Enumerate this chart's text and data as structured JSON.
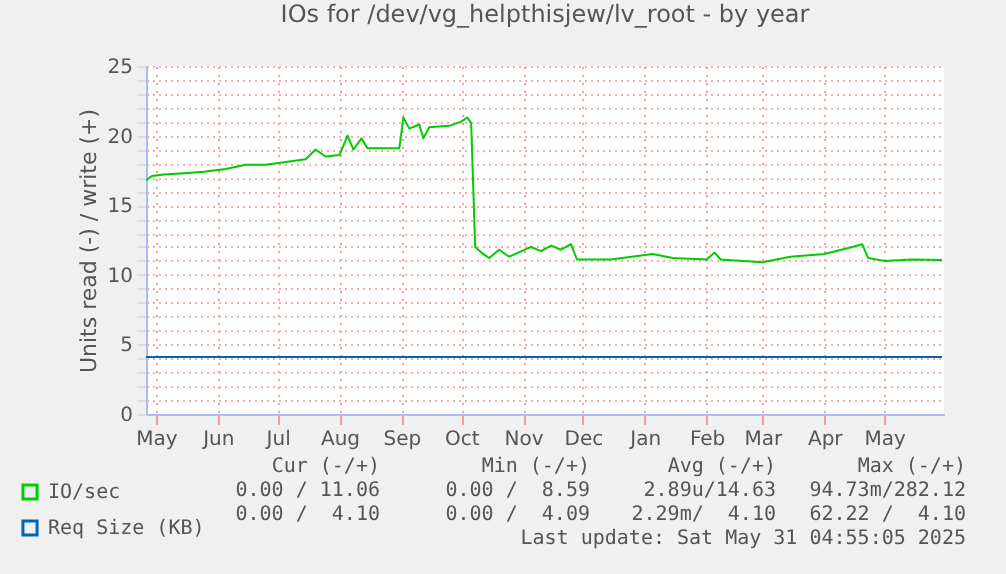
{
  "chart_data": {
    "type": "line",
    "title": "IOs for /dev/vg_helpthisjew/lv_root - by year",
    "ylabel": "Units read (-) / write (+)",
    "xlim": [
      "2024-04-26",
      "2025-05-31"
    ],
    "xticks": [
      {
        "value": "2024-05-01",
        "label": "May"
      },
      {
        "value": "2024-06-01",
        "label": "Jun"
      },
      {
        "value": "2024-07-01",
        "label": "Jul"
      },
      {
        "value": "2024-08-01",
        "label": "Aug"
      },
      {
        "value": "2024-09-01",
        "label": "Sep"
      },
      {
        "value": "2024-10-01",
        "label": "Oct"
      },
      {
        "value": "2024-11-01",
        "label": "Nov"
      },
      {
        "value": "2024-12-01",
        "label": "Dec"
      },
      {
        "value": "2025-01-01",
        "label": "Jan"
      },
      {
        "value": "2025-02-01",
        "label": "Feb"
      },
      {
        "value": "2025-03-01",
        "label": "Mar"
      },
      {
        "value": "2025-04-01",
        "label": "Apr"
      },
      {
        "value": "2025-05-01",
        "label": "May"
      }
    ],
    "ylim": [
      0,
      25
    ],
    "yticks": [
      0,
      {
        "value": 1,
        "label": null
      },
      {
        "value": 2,
        "label": null
      },
      {
        "value": 3,
        "label": null
      },
      {
        "value": 4,
        "label": null
      },
      5,
      {
        "value": 6,
        "label": null
      },
      {
        "value": 7,
        "label": null
      },
      {
        "value": 8,
        "label": null
      },
      {
        "value": 9,
        "label": null
      },
      10,
      {
        "value": 11,
        "label": null
      },
      {
        "value": 12,
        "label": null
      },
      {
        "value": 13,
        "label": null
      },
      {
        "value": 14,
        "label": null
      },
      15,
      {
        "value": 16,
        "label": null
      },
      {
        "value": 17,
        "label": null
      },
      {
        "value": 18,
        "label": null
      },
      {
        "value": 19,
        "label": null
      },
      20,
      {
        "value": 21,
        "label": null
      },
      {
        "value": 22,
        "label": null
      },
      {
        "value": 23,
        "label": null
      },
      {
        "value": 24,
        "label": null
      },
      25
    ],
    "grid": true,
    "legend": "bottom left",
    "line_style": "solid",
    "series": [
      {
        "name": "IO/sec",
        "color": "#00cc00",
        "x": [
          "2024-04-26",
          "2024-04-29",
          "2024-05-05",
          "2024-05-15",
          "2024-05-25",
          "2024-06-05",
          "2024-06-15",
          "2024-06-25",
          "2024-07-05",
          "2024-07-15",
          "2024-07-20",
          "2024-07-25",
          "2024-08-01",
          "2024-08-05",
          "2024-08-08",
          "2024-08-12",
          "2024-08-15",
          "2024-08-31",
          "2024-09-02",
          "2024-09-05",
          "2024-09-10",
          "2024-09-12",
          "2024-09-15",
          "2024-09-25",
          "2024-10-01",
          "2024-10-04",
          "2024-10-06",
          "2024-10-08",
          "2024-10-12",
          "2024-10-15",
          "2024-10-20",
          "2024-10-25",
          "2024-11-05",
          "2024-11-10",
          "2024-11-15",
          "2024-11-20",
          "2024-11-25",
          "2024-11-28",
          "2024-12-15",
          "2025-01-05",
          "2025-01-15",
          "2025-02-01",
          "2025-02-05",
          "2025-02-08",
          "2025-03-01",
          "2025-03-15",
          "2025-04-01",
          "2025-04-15",
          "2025-04-20",
          "2025-04-23",
          "2025-05-01",
          "2025-05-15",
          "2025-05-30"
        ],
        "values": [
          16.8,
          17.1,
          17.2,
          17.3,
          17.4,
          17.6,
          17.9,
          17.9,
          18.1,
          18.3,
          19.0,
          18.5,
          18.6,
          20.0,
          19.0,
          19.8,
          19.1,
          19.1,
          21.3,
          20.5,
          20.8,
          19.8,
          20.6,
          20.7,
          21.0,
          21.3,
          20.9,
          12.0,
          11.5,
          11.2,
          11.8,
          11.3,
          12.0,
          11.7,
          12.1,
          11.8,
          12.2,
          11.1,
          11.1,
          11.5,
          11.2,
          11.1,
          11.6,
          11.1,
          10.9,
          11.3,
          11.5,
          12.0,
          12.2,
          11.2,
          11.0,
          11.1,
          11.06
        ]
      },
      {
        "name": "Req Size (KB)",
        "color": "#0066b3",
        "x": [
          "2024-04-26",
          "2025-05-30"
        ],
        "values": [
          4.1,
          4.1
        ]
      }
    ],
    "annotations": [
      "Cur (-/+)",
      "Min (-/+)",
      "Avg (-/+)",
      "Max (-/+)",
      "0.00 / 11.06",
      "0.00 /  8.59",
      "2.89u/14.63",
      "94.73m/282.12",
      "0.00 /  4.10",
      "0.00 /  4.09",
      "2.29m/  4.10",
      "62.22 /  4.10",
      "Last update: Sat May 31 04:55:05 2025"
    ]
  }
}
